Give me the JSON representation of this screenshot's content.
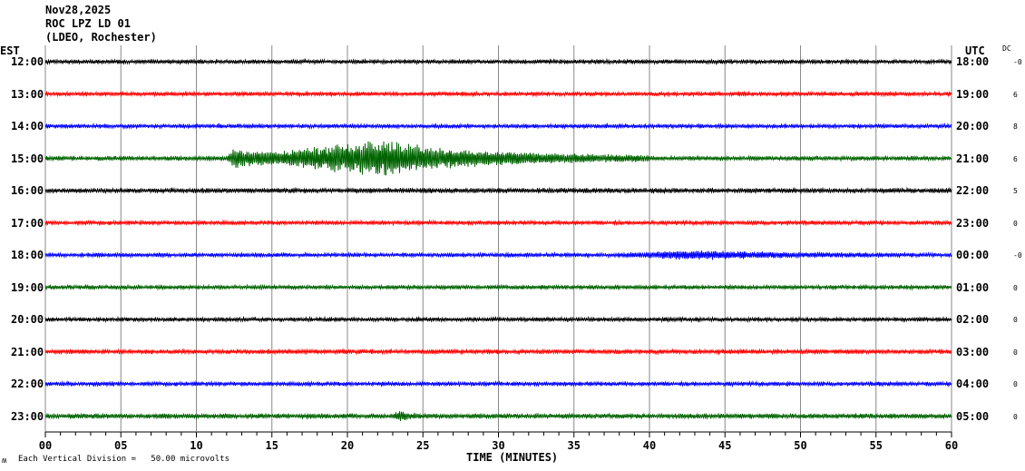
{
  "header": {
    "date": "Nov28,2025",
    "station": "ROC LPZ LD 01",
    "location": "(LDEO, Rochester)"
  },
  "left_axis_label": "EST",
  "right_axis_label": "UTC",
  "dc_label": "DC",
  "footer": {
    "scale_icon": "ʍ",
    "scale_text": "Each Vertical Division =   50.00 microvolts",
    "x_axis_title": "TIME (MINUTES)"
  },
  "chart_data": {
    "type": "line",
    "title": "ROC LPZ LD 01 helicorder, Nov28,2025",
    "xlabel": "TIME (MINUTES)",
    "xlim": [
      0,
      60
    ],
    "x_ticks": [
      "00",
      "05",
      "10",
      "15",
      "20",
      "25",
      "30",
      "35",
      "40",
      "45",
      "50",
      "55",
      "60"
    ],
    "grid": "vertical every 5 minutes",
    "rows": [
      {
        "est": "12:00",
        "utc": "18:00",
        "dc": "-0",
        "color": "#000000",
        "noise": 1.0,
        "events": []
      },
      {
        "est": "13:00",
        "utc": "19:00",
        "dc": "6",
        "color": "#ff0000",
        "noise": 1.0,
        "events": []
      },
      {
        "est": "14:00",
        "utc": "20:00",
        "dc": "8",
        "color": "#0000ff",
        "noise": 1.0,
        "events": []
      },
      {
        "est": "15:00",
        "utc": "21:00",
        "dc": "6",
        "color": "#006400",
        "noise": 1.1,
        "events": [
          {
            "start": 12,
            "peak": 22,
            "end": 40,
            "amp": 20
          },
          {
            "start": 12,
            "peak": 12.5,
            "end": 15,
            "amp": 10
          }
        ]
      },
      {
        "est": "16:00",
        "utc": "22:00",
        "dc": "5",
        "color": "#000000",
        "noise": 1.2,
        "events": []
      },
      {
        "est": "17:00",
        "utc": "23:00",
        "dc": "0",
        "color": "#ff0000",
        "noise": 1.0,
        "events": []
      },
      {
        "est": "18:00",
        "utc": "00:00",
        "dc": "-0",
        "color": "#0000ff",
        "noise": 1.0,
        "events": [
          {
            "start": 37.5,
            "peak": 43,
            "end": 57,
            "amp": 4
          }
        ]
      },
      {
        "est": "19:00",
        "utc": "01:00",
        "dc": "0",
        "color": "#006400",
        "noise": 1.0,
        "events": []
      },
      {
        "est": "20:00",
        "utc": "02:00",
        "dc": "0",
        "color": "#000000",
        "noise": 1.0,
        "events": []
      },
      {
        "est": "21:00",
        "utc": "03:00",
        "dc": "0",
        "color": "#ff0000",
        "noise": 1.1,
        "events": []
      },
      {
        "est": "22:00",
        "utc": "04:00",
        "dc": "0",
        "color": "#0000ff",
        "noise": 1.0,
        "events": []
      },
      {
        "est": "23:00",
        "utc": "05:00",
        "dc": "0",
        "color": "#006400",
        "noise": 1.2,
        "events": [
          {
            "start": 23,
            "peak": 23.5,
            "end": 25,
            "amp": 5
          }
        ]
      }
    ]
  }
}
